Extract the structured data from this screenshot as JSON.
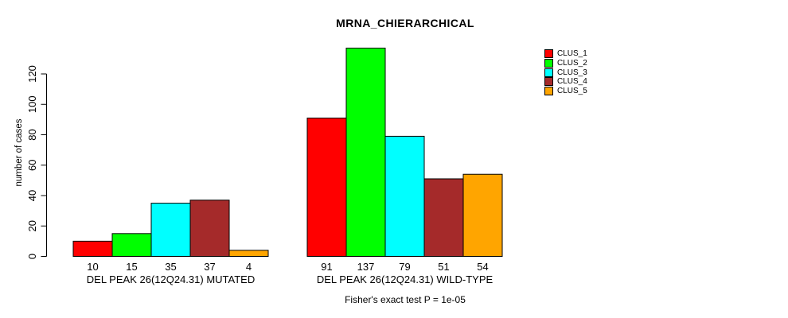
{
  "chart_data": {
    "type": "bar",
    "title": "MRNA_CHIERARCHICAL",
    "ylabel": "number of cases",
    "xlabel": "",
    "yticks": [
      0,
      20,
      40,
      60,
      80,
      100,
      120
    ],
    "ylim": [
      0,
      137
    ],
    "grid": false,
    "legend_position": "top-right",
    "series": [
      {
        "name": "CLUS_1",
        "color": "#FF0000"
      },
      {
        "name": "CLUS_2",
        "color": "#00FF00"
      },
      {
        "name": "CLUS_3",
        "color": "#00FFFF"
      },
      {
        "name": "CLUS_4",
        "color": "#A52A2A"
      },
      {
        "name": "CLUS_5",
        "color": "#FFA500"
      }
    ],
    "groups": [
      {
        "label": "DEL PEAK 26(12Q24.31) MUTATED",
        "values": [
          10,
          15,
          35,
          37,
          4
        ]
      },
      {
        "label": "DEL PEAK 26(12Q24.31) WILD-TYPE",
        "values": [
          91,
          137,
          79,
          51,
          54
        ]
      }
    ],
    "bar_value_labels_shown": true,
    "annotation": "Fisher's exact test P = 1e-05",
    "axis_color": "#000000",
    "bar_border_color": "#000000",
    "background": "#FFFFFF"
  }
}
